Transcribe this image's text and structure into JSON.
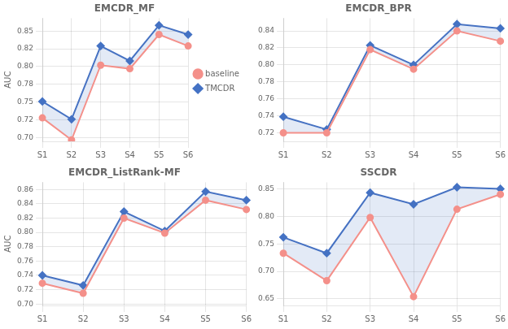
{
  "chart_data": [
    {
      "type": "line",
      "title": "EMCDR_MF",
      "categories": [
        "S1",
        "S2",
        "S3",
        "S4",
        "S5",
        "S6"
      ],
      "series": [
        {
          "name": "baseline",
          "color": "#F4908A",
          "marker": "circle",
          "values": [
            0.728,
            0.697,
            0.802,
            0.797,
            0.845,
            0.829
          ]
        },
        {
          "name": "TMCDR",
          "color": "#4472C4",
          "marker": "diamond",
          "values": [
            0.751,
            0.726,
            0.829,
            0.808,
            0.858,
            0.845
          ]
        }
      ],
      "ylabel": "AUC",
      "ylim": [
        0.695,
        0.868
      ],
      "yticks": [
        {
          "value": 0.7,
          "label": "0.70"
        },
        {
          "value": 0.725,
          "label": "0.72"
        },
        0.75,
        {
          "value": 0.775,
          "label": "0.78"
        },
        {
          "value": 0.8,
          "label": "0.80"
        },
        {
          "value": 0.825,
          "label": "0.82"
        },
        0.85
      ],
      "grid": true,
      "legend": "right"
    },
    {
      "type": "line",
      "title": "EMCDR_BPR",
      "categories": [
        "S1",
        "S2",
        "S3",
        "S4",
        "S5",
        "S6"
      ],
      "series": [
        {
          "name": "baseline",
          "color": "#F4908A",
          "marker": "circle",
          "values": [
            0.72,
            0.72,
            0.818,
            0.795,
            0.84,
            0.828
          ]
        },
        {
          "name": "TMCDR",
          "color": "#4472C4",
          "marker": "diamond",
          "values": [
            0.739,
            0.724,
            0.823,
            0.8,
            0.848,
            0.843
          ]
        }
      ],
      "ylim": [
        0.71,
        0.855
      ],
      "yticks": [
        0.72,
        0.74,
        0.76,
        0.78,
        {
          "value": 0.8,
          "label": "0.80"
        },
        0.82,
        0.84
      ],
      "grid": true
    },
    {
      "type": "line",
      "title": "EMCDR_ListRank-MF",
      "categories": [
        "S1",
        "S2",
        "S3",
        "S4",
        "S5",
        "S6"
      ],
      "series": [
        {
          "name": "baseline",
          "color": "#F4908A",
          "marker": "circle",
          "values": [
            0.729,
            0.715,
            0.82,
            0.799,
            0.845,
            0.832
          ]
        },
        {
          "name": "TMCDR",
          "color": "#4472C4",
          "marker": "diamond",
          "values": [
            0.74,
            0.726,
            0.829,
            0.802,
            0.857,
            0.845
          ]
        }
      ],
      "ylabel": "AUC",
      "ylim": [
        0.698,
        0.87
      ],
      "yticks": [
        {
          "value": 0.7,
          "label": "0.70"
        },
        0.72,
        0.74,
        0.76,
        0.78,
        {
          "value": 0.8,
          "label": "0.80"
        },
        0.82,
        0.84,
        0.86
      ],
      "grid": true
    },
    {
      "type": "line",
      "title": "SSCDR",
      "categories": [
        "S1",
        "S2",
        "S3",
        "S4",
        "S5",
        "S6"
      ],
      "series": [
        {
          "name": "baseline",
          "color": "#F4908A",
          "marker": "circle",
          "values": [
            0.733,
            0.683,
            0.798,
            0.654,
            0.813,
            0.84
          ]
        },
        {
          "name": "TMCDR",
          "color": "#4472C4",
          "marker": "diamond",
          "values": [
            0.762,
            0.733,
            0.843,
            0.822,
            0.853,
            0.85
          ]
        }
      ],
      "ylim": [
        0.638,
        0.862
      ],
      "yticks": [
        0.65,
        {
          "value": 0.7,
          "label": "0.70"
        },
        0.75,
        {
          "value": 0.8,
          "label": "0.80"
        },
        0.85
      ],
      "grid": true
    }
  ]
}
